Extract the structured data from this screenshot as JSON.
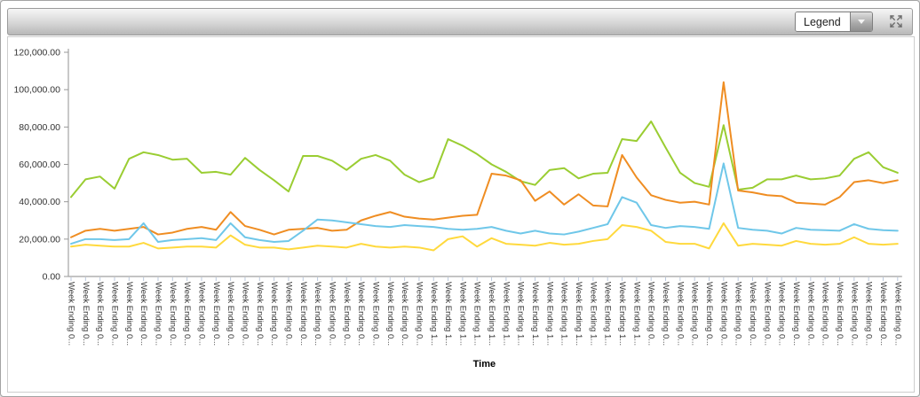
{
  "toolbar": {
    "legend_dropdown": {
      "label": "Legend"
    },
    "expand_icon": "expand-arrows-icon"
  },
  "chart_data": {
    "type": "line",
    "title": "",
    "xlabel": "Time",
    "ylabel": "",
    "ylim": [
      0,
      120000
    ],
    "grid": false,
    "legend_position": "collapsed-dropdown",
    "y_ticks": [
      "120,000.00",
      "100,000.00",
      "80,000.00",
      "60,000.00",
      "40,000.00",
      "20,000.00",
      "0.00"
    ],
    "colors": {
      "axis": "#b0b0b0",
      "x_tick": "#b9c7dc",
      "y_tick": "#999999",
      "label": "#333333"
    },
    "categories": [
      "Week Ending 0...",
      "Week Ending 0...",
      "Week Ending 0...",
      "Week Ending 0...",
      "Week Ending 0...",
      "Week Ending 0...",
      "Week Ending 0...",
      "Week Ending 0...",
      "Week Ending 0...",
      "Week Ending 0...",
      "Week Ending 0...",
      "Week Ending 0...",
      "Week Ending 0...",
      "Week Ending 0...",
      "Week Ending 0...",
      "Week Ending 0...",
      "Week Ending 0...",
      "Week Ending 0...",
      "Week Ending 0...",
      "Week Ending 0...",
      "Week Ending 0...",
      "Week Ending 0...",
      "Week Ending 0...",
      "Week Ending 0...",
      "Week Ending 0...",
      "Week Ending 1...",
      "Week Ending 1...",
      "Week Ending 1...",
      "Week Ending 1...",
      "Week Ending 1...",
      "Week Ending 1...",
      "Week Ending 1...",
      "Week Ending 1...",
      "Week Ending 1...",
      "Week Ending 1...",
      "Week Ending 1...",
      "Week Ending 1...",
      "Week Ending 1...",
      "Week Ending 1...",
      "Week Ending 1...",
      "Week Ending 0...",
      "Week Ending 0...",
      "Week Ending 0...",
      "Week Ending 0...",
      "Week Ending 0...",
      "Week Ending 0...",
      "Week Ending 0...",
      "Week Ending 0...",
      "Week Ending 0...",
      "Week Ending 0...",
      "Week Ending 0...",
      "Week Ending 0...",
      "Week Ending 0...",
      "Week Ending 0...",
      "Week Ending 0...",
      "Week Ending 0...",
      "Week Ending 0...",
      "Week Ending 0..."
    ],
    "series": [
      {
        "name": "green",
        "color": "#9ACD32",
        "values": [
          42500,
          52000,
          53500,
          47000,
          63000,
          66500,
          65000,
          62500,
          63000,
          55500,
          56000,
          54500,
          63500,
          57000,
          51500,
          45500,
          64500,
          64500,
          62000,
          57000,
          63000,
          65000,
          62000,
          54500,
          50500,
          53000,
          73500,
          70000,
          65500,
          60000,
          56000,
          51000,
          49000,
          57000,
          58000,
          52500,
          55000,
          55500,
          73500,
          72500,
          83000,
          69000,
          55500,
          50000,
          48000,
          81000,
          46500,
          47500,
          52000,
          52000,
          54000,
          52000,
          52500,
          54000,
          63000,
          66500,
          58500,
          55500
        ]
      },
      {
        "name": "orange",
        "color": "#EF8D22",
        "values": [
          21000,
          24500,
          25500,
          24500,
          25500,
          26500,
          22500,
          23500,
          25500,
          26500,
          25000,
          34500,
          27000,
          25000,
          22500,
          25000,
          25500,
          26000,
          24500,
          25000,
          30000,
          32500,
          34500,
          32000,
          31000,
          30500,
          31500,
          32500,
          33000,
          55000,
          54000,
          51500,
          40500,
          45500,
          38500,
          44000,
          38000,
          37500,
          65000,
          53000,
          43500,
          41000,
          39500,
          40000,
          38500,
          104000,
          46000,
          45000,
          43500,
          43000,
          39500,
          39000,
          38500,
          42500,
          50500,
          51500,
          50000,
          51500
        ]
      },
      {
        "name": "sky-blue",
        "color": "#6FC7E9",
        "values": [
          17500,
          20000,
          20000,
          19500,
          20000,
          28500,
          18500,
          19500,
          20000,
          20500,
          19500,
          28500,
          21000,
          19500,
          18500,
          19000,
          24500,
          30500,
          30000,
          29000,
          28000,
          27000,
          26500,
          27500,
          27000,
          26500,
          25500,
          25000,
          25500,
          26500,
          24500,
          23000,
          24500,
          23000,
          22500,
          24000,
          26000,
          28000,
          42500,
          39500,
          27500,
          26000,
          27000,
          26500,
          25500,
          60500,
          26000,
          25000,
          24500,
          23000,
          26000,
          25000,
          24800,
          24500,
          28000,
          25500,
          24800,
          24500
        ]
      },
      {
        "name": "yellow",
        "color": "#FFD93D",
        "values": [
          16000,
          17000,
          16500,
          16000,
          16000,
          18000,
          15000,
          15500,
          16000,
          16000,
          15500,
          22000,
          17000,
          15500,
          15500,
          14500,
          15500,
          16500,
          16000,
          15500,
          17500,
          16000,
          15500,
          16000,
          15500,
          14000,
          20000,
          21500,
          16000,
          20500,
          17500,
          17000,
          16500,
          18000,
          17000,
          17500,
          19000,
          20000,
          27500,
          26500,
          24500,
          18500,
          17500,
          17500,
          15000,
          28500,
          16500,
          17500,
          17000,
          16500,
          19000,
          17500,
          17000,
          17500,
          21000,
          17500,
          17000,
          17500
        ]
      }
    ]
  }
}
